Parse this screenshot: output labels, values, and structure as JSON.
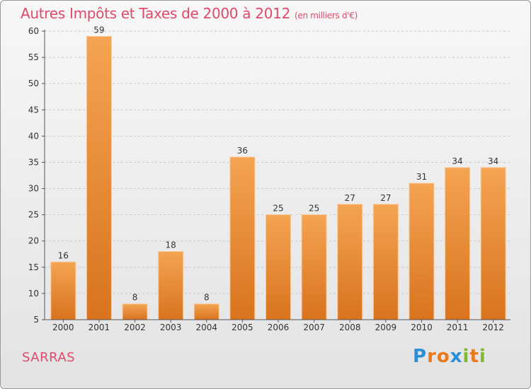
{
  "header": {
    "title": "Autres Impôts et Taxes de 2000 à 2012",
    "subtitle": "(en milliers d'€)"
  },
  "footer": {
    "place": "SARRAS",
    "logo_text": "Proxiti",
    "logo_colors": [
      "#2a8fd6",
      "#e9791c",
      "#e9791c",
      "#2a8fd6",
      "#7dbb2d",
      "#e9791c",
      "#7dbb2d"
    ]
  },
  "colors": {
    "title": "#e04a6a",
    "bar_light": "#f4a452",
    "bar_dark": "#d9731e"
  },
  "chart_data": {
    "type": "bar",
    "categories": [
      "2000",
      "2001",
      "2002",
      "2003",
      "2004",
      "2005",
      "2006",
      "2007",
      "2008",
      "2009",
      "2010",
      "2011",
      "2012"
    ],
    "values": [
      16,
      59,
      8,
      18,
      8,
      36,
      25,
      25,
      27,
      27,
      31,
      34,
      34
    ],
    "data_labels": [
      "16",
      "59",
      "8",
      "18",
      "8",
      "36",
      "25",
      "25",
      "27",
      "27",
      "31",
      "34",
      "34"
    ],
    "y_ticks": [
      "5",
      "10",
      "15",
      "20",
      "25",
      "30",
      "35",
      "40",
      "45",
      "50",
      "55",
      "60"
    ],
    "ylim": [
      5,
      60
    ],
    "grid": true,
    "xlabel": "",
    "ylabel": ""
  }
}
